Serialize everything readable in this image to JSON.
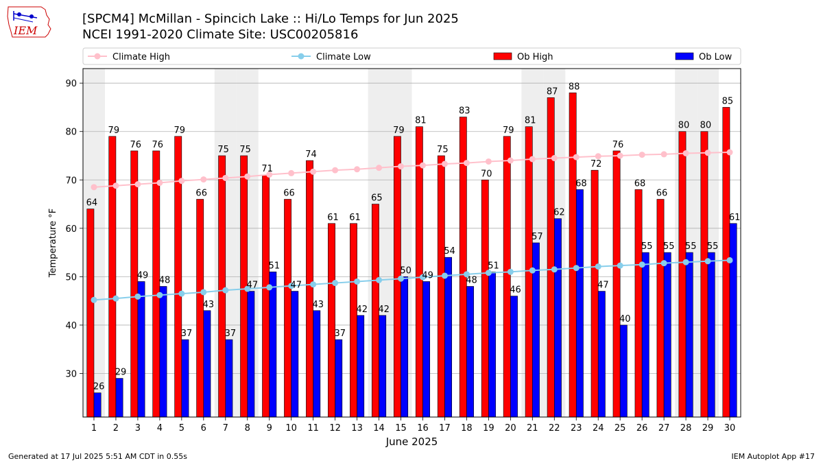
{
  "header": {
    "logo_text": "IEM",
    "title": "[SPCM4] McMillan - Spincich Lake :: Hi/Lo Temps for Jun 2025",
    "subtitle": "NCEI 1991-2020 Climate Site: USC00205816"
  },
  "footer": {
    "generated": "Generated at 17 Jul 2025 5:51 AM CDT in 0.55s",
    "app": "IEM Autoplot App #17"
  },
  "colors": {
    "climate_high": "#ffc0cb",
    "climate_low": "#87ceeb",
    "ob_high": "#ff0000",
    "ob_low": "#0000ff",
    "weekend_shade": "#eeeeee"
  },
  "chart_data": {
    "type": "bar",
    "xlabel": "June 2025",
    "ylabel": "Temperature °F",
    "ylim": [
      21,
      93
    ],
    "yticks": [
      30,
      40,
      50,
      60,
      70,
      80,
      90
    ],
    "grid": true,
    "legend_position": "top",
    "categories": [
      "1",
      "2",
      "3",
      "4",
      "5",
      "6",
      "7",
      "8",
      "9",
      "10",
      "11",
      "12",
      "13",
      "14",
      "15",
      "16",
      "17",
      "18",
      "19",
      "20",
      "21",
      "22",
      "23",
      "24",
      "25",
      "26",
      "27",
      "28",
      "29",
      "30"
    ],
    "shaded_days": [
      1,
      7,
      8,
      14,
      15,
      21,
      22,
      28,
      29
    ],
    "series": [
      {
        "name": "Climate High",
        "kind": "line",
        "values": [
          68.5,
          68.8,
          69.1,
          69.4,
          69.8,
          70.1,
          70.4,
          70.7,
          71.1,
          71.4,
          71.7,
          72.0,
          72.2,
          72.5,
          72.8,
          73.0,
          73.3,
          73.5,
          73.8,
          74.0,
          74.3,
          74.5,
          74.7,
          74.9,
          75.0,
          75.2,
          75.3,
          75.5,
          75.6,
          75.7
        ]
      },
      {
        "name": "Climate Low",
        "kind": "line",
        "values": [
          45.2,
          45.5,
          45.9,
          46.2,
          46.5,
          46.8,
          47.2,
          47.5,
          47.8,
          48.1,
          48.4,
          48.7,
          49.0,
          49.3,
          49.6,
          49.9,
          50.2,
          50.5,
          50.8,
          51.0,
          51.3,
          51.5,
          51.8,
          52.1,
          52.3,
          52.5,
          52.8,
          53.0,
          53.2,
          53.4
        ]
      },
      {
        "name": "Ob High",
        "kind": "bar",
        "values": [
          64,
          79,
          76,
          76,
          79,
          66,
          75,
          75,
          71,
          66,
          74,
          61,
          61,
          65,
          79,
          81,
          75,
          83,
          70,
          79,
          81,
          87,
          88,
          72,
          76,
          68,
          66,
          80,
          80,
          85
        ]
      },
      {
        "name": "Ob Low",
        "kind": "bar",
        "values": [
          26,
          29,
          49,
          48,
          37,
          43,
          37,
          47,
          51,
          47,
          43,
          37,
          42,
          42,
          50,
          49,
          54,
          48,
          51,
          46,
          57,
          62,
          68,
          47,
          40,
          55,
          55,
          55,
          55,
          61
        ]
      }
    ]
  }
}
